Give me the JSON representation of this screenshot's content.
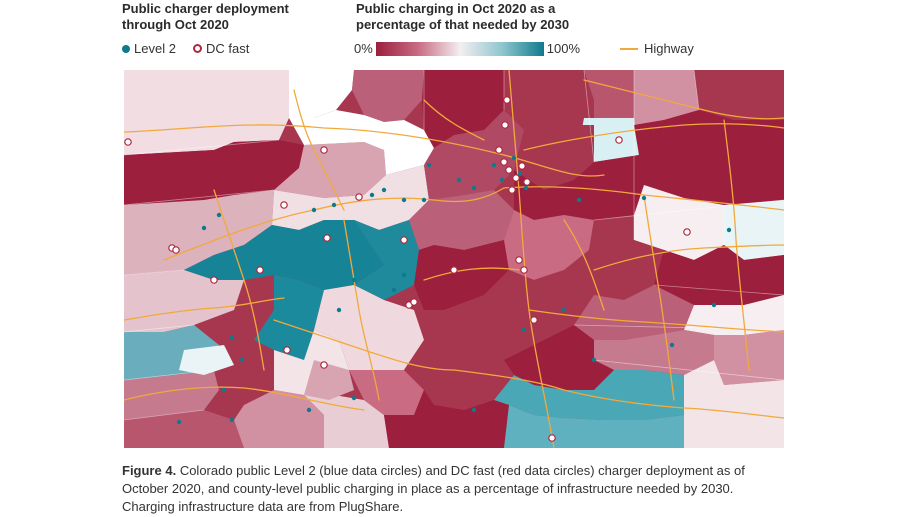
{
  "legend": {
    "deployment_title_line1": "Public charger deployment",
    "deployment_title_line2": "through Oct 2020",
    "level2_label": "Level 2",
    "dcfast_label": "DC fast",
    "percent_title_line1": "Public charging in Oct 2020 as a",
    "percent_title_line2": "percentage of that needed by 2030",
    "scale_min": "0%",
    "scale_max": "100%",
    "highway_label": "Highway"
  },
  "caption": {
    "label": "Figure 4.",
    "text": "Colorado public Level 2 (blue data circles) and DC fast (red data circles) charger deployment as of October 2020, and county-level public charging in place as a percentage of infrastructure needed by 2030. Charging infrastructure data are from PlugShare."
  },
  "colors": {
    "level2": "#0e7a8c",
    "dcfast": "#b0283f",
    "highway": "#f2a93b",
    "scale_0": "#9c1f3d",
    "scale_100": "#0f7a8d"
  }
}
